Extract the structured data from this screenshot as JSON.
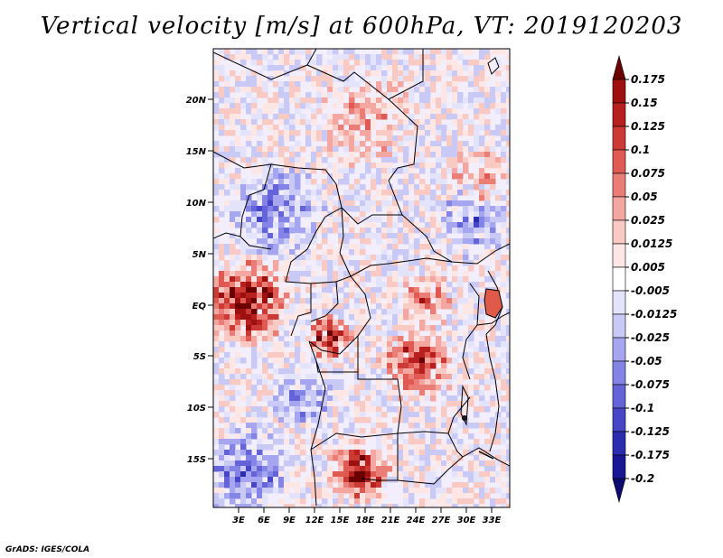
{
  "title": "Vertical velocity [m/s] at 600hPa, VT: 2019120203",
  "footer": "GrADS: IGES/COLA",
  "map": {
    "lat_labels": [
      "20N",
      "15N",
      "10N",
      "5N",
      "EQ",
      "5S",
      "10S",
      "15S"
    ],
    "lon_labels": [
      "3E",
      "6E",
      "9E",
      "12E",
      "15E",
      "18E",
      "21E",
      "24E",
      "27E",
      "30E",
      "33E"
    ]
  },
  "colorbar": {
    "labels": [
      "0.175",
      "0.15",
      "0.125",
      "0.1",
      "0.075",
      "0.05",
      "0.025",
      "0.0125",
      "0.005",
      "-0.005",
      "-0.0125",
      "-0.025",
      "-0.05",
      "-0.075",
      "-0.1",
      "-0.125",
      "-0.175",
      "-0.2"
    ],
    "colors": [
      "#6b0000",
      "#9e1010",
      "#b82020",
      "#cc3a36",
      "#de5a52",
      "#ea7e76",
      "#f4a6a0",
      "#f9c9c4",
      "#fde6e3",
      "#ffffff",
      "#e3e3fb",
      "#c9c9f6",
      "#a6a6f0",
      "#8484e6",
      "#6464d8",
      "#4646c6",
      "#2c2cae",
      "#181894",
      "#0c0c70"
    ]
  }
}
